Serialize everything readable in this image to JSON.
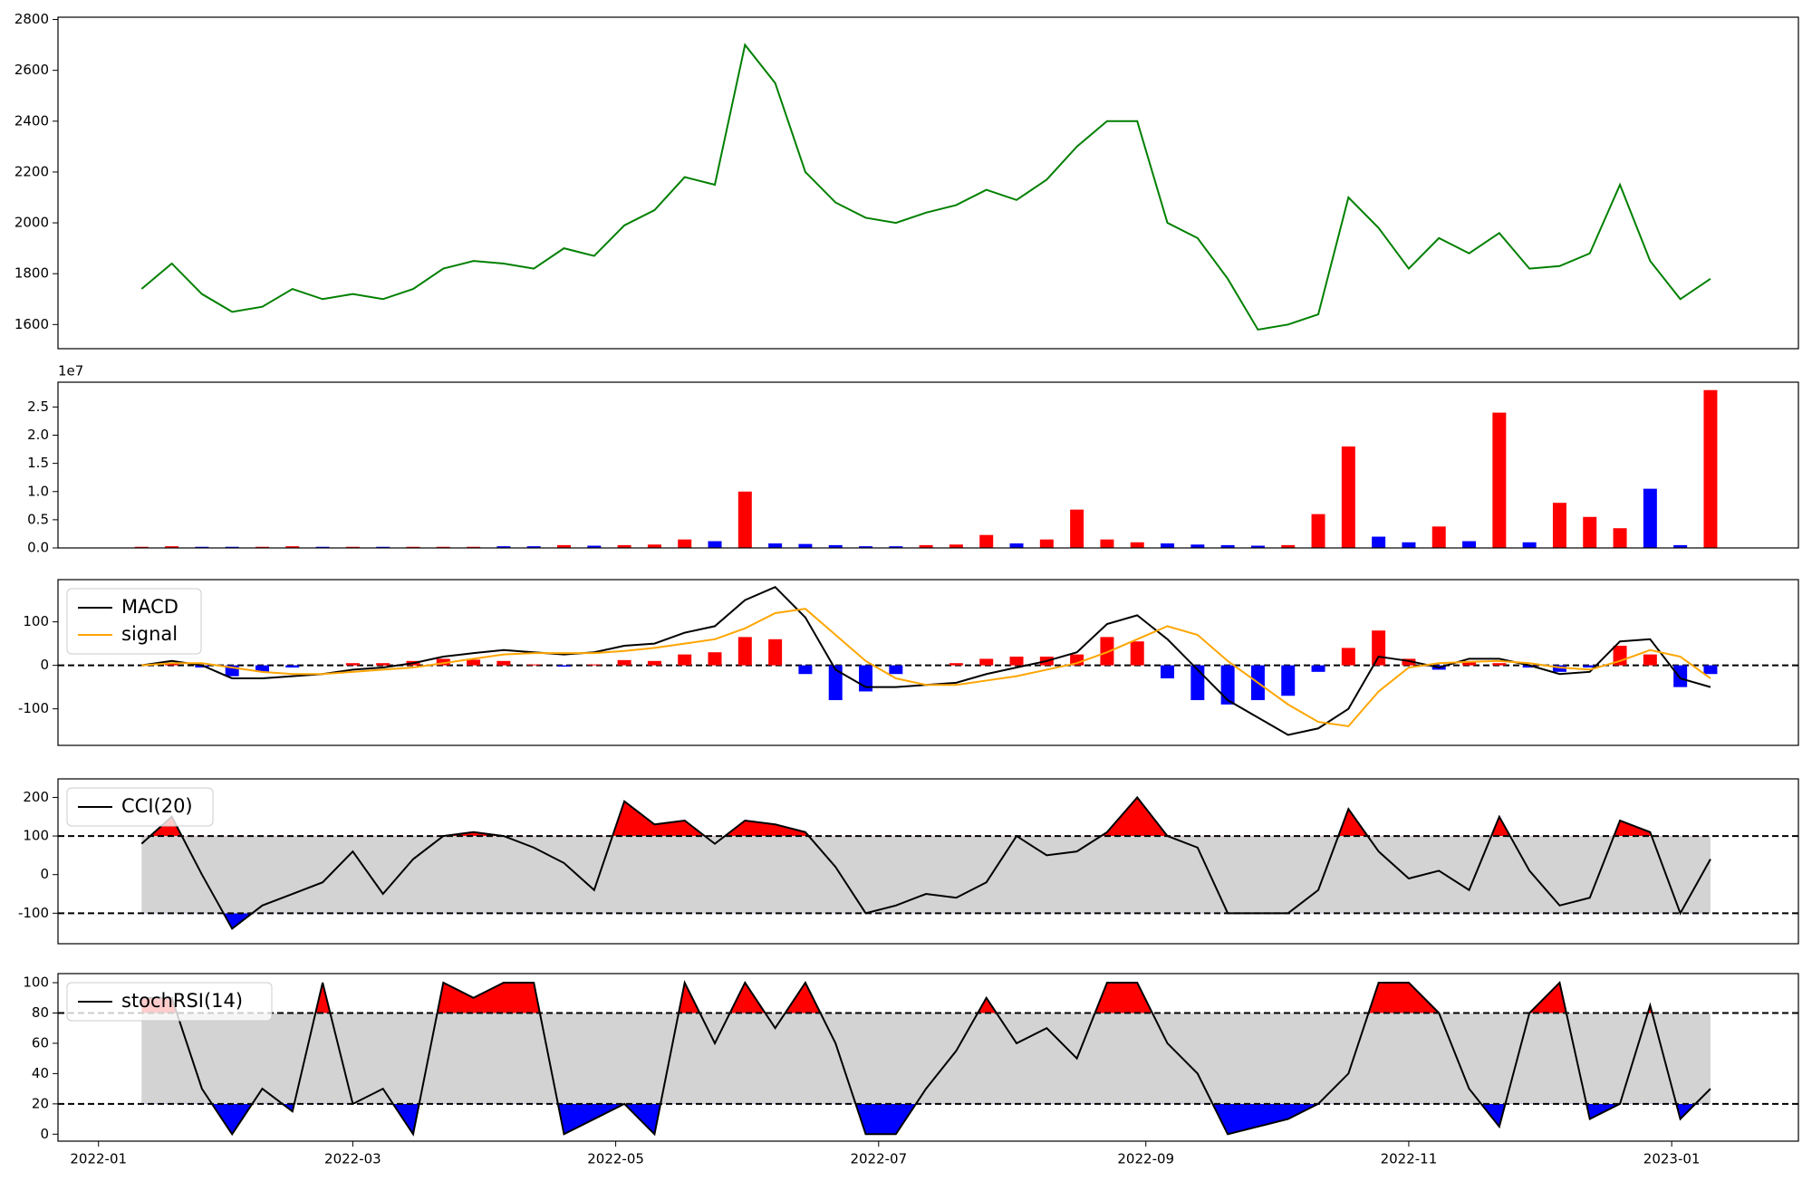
{
  "chart_data": [
    {
      "type": "line",
      "x": [
        10,
        17,
        24,
        31,
        38,
        45,
        52,
        59,
        66,
        73,
        80,
        87,
        94,
        101,
        108,
        115,
        122,
        129,
        136,
        143,
        150,
        157,
        164,
        171,
        178,
        185,
        192,
        199,
        206,
        213,
        220,
        227,
        234,
        241,
        248,
        255,
        262,
        269,
        276,
        283,
        290,
        297,
        304,
        311,
        318,
        325,
        332,
        339,
        346,
        353,
        360,
        367,
        374
      ],
      "series": [
        {
          "color": "#008000",
          "values": [
            1740,
            1840,
            1720,
            1650,
            1670,
            1740,
            1700,
            1720,
            1700,
            1740,
            1820,
            1850,
            1840,
            1820,
            1900,
            1870,
            1990,
            2050,
            2180,
            2150,
            2700,
            2550,
            2200,
            2080,
            2020,
            2000,
            2040,
            2070,
            2130,
            2090,
            2170,
            2300,
            2400,
            2400,
            2000,
            1940,
            1780,
            1580,
            1600,
            1640,
            2100,
            1980,
            1820,
            1940,
            1880,
            1960,
            1820,
            1830,
            1880,
            2150,
            1850,
            1700,
            1780
          ]
        }
      ],
      "xlim": [
        -9.4,
        394.4
      ],
      "ylim": [
        1505,
        2809
      ],
      "yticks": [
        1600,
        1800,
        2000,
        2200,
        2400,
        2600,
        2800
      ]
    },
    {
      "type": "bar",
      "x": [
        10,
        17,
        24,
        31,
        38,
        45,
        52,
        59,
        66,
        73,
        80,
        87,
        94,
        101,
        108,
        115,
        122,
        129,
        136,
        143,
        150,
        157,
        164,
        171,
        178,
        185,
        192,
        199,
        206,
        213,
        220,
        227,
        234,
        241,
        248,
        255,
        262,
        269,
        276,
        283,
        290,
        297,
        304,
        311,
        318,
        325,
        332,
        339,
        346,
        353,
        360,
        367,
        374
      ],
      "values": [
        200000,
        300000,
        200000,
        200000,
        200000,
        300000,
        200000,
        200000,
        200000,
        200000,
        200000,
        200000,
        300000,
        300000,
        500000,
        400000,
        500000,
        600000,
        1500000,
        1200000,
        10000000,
        800000,
        700000,
        500000,
        300000,
        300000,
        500000,
        600000,
        2300000,
        800000,
        1500000,
        6800000,
        1500000,
        1000000,
        800000,
        600000,
        500000,
        400000,
        500000,
        6000000,
        18000000,
        2000000,
        1000000,
        3800000,
        1200000,
        24000000,
        1000000,
        8000000,
        5500000,
        3500000,
        10500000,
        500000,
        28000000
      ],
      "up_color": "#ff0000",
      "down_color": "#0000ff",
      "offset_label": "1e7",
      "xlim": [
        -9.4,
        394.4
      ],
      "ylim": [
        0,
        29400000
      ],
      "yticks": [
        {
          "value": 0,
          "label": "0.0"
        },
        {
          "value": 5000000,
          "label": "0.5"
        },
        {
          "value": 10000000,
          "label": "1.0"
        },
        {
          "value": 15000000,
          "label": "1.5"
        },
        {
          "value": 20000000,
          "label": "2.0"
        },
        {
          "value": 25000000,
          "label": "2.5"
        }
      ]
    },
    {
      "type": "line",
      "x": [
        10,
        17,
        24,
        31,
        38,
        45,
        52,
        59,
        66,
        73,
        80,
        87,
        94,
        101,
        108,
        115,
        122,
        129,
        136,
        143,
        150,
        157,
        164,
        171,
        178,
        185,
        192,
        199,
        206,
        213,
        220,
        227,
        234,
        241,
        248,
        255,
        262,
        269,
        276,
        283,
        290,
        297,
        304,
        311,
        318,
        325,
        332,
        339,
        346,
        353,
        360,
        367,
        374
      ],
      "series": [
        {
          "name": "MACD",
          "color": "#000000",
          "values": [
            0,
            10,
            0,
            -30,
            -30,
            -25,
            -20,
            -10,
            -5,
            5,
            20,
            28,
            35,
            30,
            25,
            30,
            45,
            50,
            75,
            90,
            150,
            180,
            110,
            -10,
            -50,
            -50,
            -45,
            -40,
            -20,
            -5,
            10,
            30,
            95,
            115,
            60,
            -10,
            -80,
            -120,
            -160,
            -145,
            -100,
            20,
            10,
            -5,
            15,
            15,
            0,
            -20,
            -15,
            55,
            60,
            -30,
            -50
          ]
        },
        {
          "name": "signal",
          "color": "#ffa500",
          "values": [
            0,
            5,
            5,
            -5,
            -15,
            -20,
            -20,
            -15,
            -10,
            -5,
            5,
            15,
            25,
            28,
            28,
            28,
            33,
            40,
            50,
            60,
            85,
            120,
            130,
            70,
            10,
            -30,
            -45,
            -45,
            -35,
            -25,
            -10,
            5,
            30,
            60,
            90,
            70,
            10,
            -40,
            -90,
            -130,
            -140,
            -60,
            -5,
            5,
            8,
            10,
            5,
            -5,
            -10,
            10,
            35,
            20,
            -30
          ]
        }
      ],
      "bars": {
        "values": [
          0,
          5,
          -5,
          -25,
          -15,
          -5,
          0,
          5,
          5,
          10,
          15,
          13,
          10,
          2,
          -3,
          2,
          12,
          10,
          25,
          30,
          65,
          60,
          -20,
          -80,
          -60,
          -20,
          0,
          5,
          15,
          20,
          20,
          25,
          65,
          55,
          -30,
          -80,
          -90,
          -80,
          -70,
          -15,
          40,
          80,
          15,
          -10,
          7,
          5,
          -5,
          -15,
          -5,
          45,
          25,
          -50,
          -20
        ],
        "up_color": "#ff0000",
        "down_color": "#0000ff"
      },
      "zero_line": 0,
      "legend": "upper left",
      "xlim": [
        -9.4,
        394.4
      ],
      "ylim": [
        -184,
        197
      ],
      "yticks": [
        -100,
        0,
        100
      ]
    },
    {
      "type": "line",
      "x": [
        10,
        17,
        24,
        31,
        38,
        45,
        52,
        59,
        66,
        73,
        80,
        87,
        94,
        101,
        108,
        115,
        122,
        129,
        136,
        143,
        150,
        157,
        164,
        171,
        178,
        185,
        192,
        199,
        206,
        213,
        220,
        227,
        234,
        241,
        248,
        255,
        262,
        269,
        276,
        283,
        290,
        297,
        304,
        311,
        318,
        325,
        332,
        339,
        346,
        353,
        360,
        367,
        374
      ],
      "series": [
        {
          "name": "CCI(20)",
          "color": "#000000",
          "values": [
            80,
            150,
            0,
            -140,
            -80,
            -50,
            -20,
            60,
            -50,
            40,
            100,
            110,
            100,
            70,
            30,
            -40,
            190,
            130,
            140,
            80,
            140,
            130,
            110,
            20,
            -100,
            -80,
            -50,
            -60,
            -20,
            100,
            50,
            60,
            110,
            200,
            100,
            70,
            -100,
            -100,
            -100,
            -40,
            170,
            60,
            -10,
            10,
            -40,
            150,
            10,
            -80,
            -60,
            140,
            110,
            -100,
            40
          ]
        }
      ],
      "bands": {
        "upper": 100,
        "lower": -100,
        "fill": "#d3d3d3",
        "above_color": "#ff0000",
        "below_color": "#0000ff"
      },
      "legend": "upper left",
      "xlim": [
        -9.4,
        394.4
      ],
      "ylim": [
        -179,
        248
      ],
      "yticks": [
        -100,
        0,
        100,
        200
      ]
    },
    {
      "type": "line",
      "x": [
        10,
        17,
        24,
        31,
        38,
        45,
        52,
        59,
        66,
        73,
        80,
        87,
        94,
        101,
        108,
        115,
        122,
        129,
        136,
        143,
        150,
        157,
        164,
        171,
        178,
        185,
        192,
        199,
        206,
        213,
        220,
        227,
        234,
        241,
        248,
        255,
        262,
        269,
        276,
        283,
        290,
        297,
        304,
        311,
        318,
        325,
        332,
        339,
        346,
        353,
        360,
        367,
        374
      ],
      "series": [
        {
          "name": "stochRSI(14)",
          "color": "#000000",
          "values": [
            90,
            90,
            30,
            0,
            30,
            15,
            100,
            20,
            30,
            0,
            100,
            90,
            100,
            100,
            0,
            10,
            20,
            0,
            100,
            60,
            100,
            70,
            100,
            60,
            0,
            0,
            30,
            55,
            90,
            60,
            70,
            50,
            100,
            100,
            60,
            40,
            0,
            5,
            10,
            20,
            40,
            100,
            100,
            80,
            30,
            5,
            80,
            100,
            10,
            20,
            85,
            10,
            30
          ]
        }
      ],
      "bands": {
        "upper": 80,
        "lower": 20,
        "fill": "#d3d3d3",
        "above_color": "#ff0000",
        "below_color": "#0000ff"
      },
      "legend": "upper left",
      "xlim": [
        -9.4,
        394.4
      ],
      "ylim": [
        -4.6,
        106
      ],
      "yticks": [
        0,
        20,
        40,
        60,
        80,
        100
      ],
      "xticks": [
        {
          "value": 0,
          "label": "2022-01"
        },
        {
          "value": 59,
          "label": "2022-03"
        },
        {
          "value": 120,
          "label": "2022-05"
        },
        {
          "value": 181,
          "label": "2022-07"
        },
        {
          "value": 243,
          "label": "2022-09"
        },
        {
          "value": 304,
          "label": "2022-11"
        },
        {
          "value": 365,
          "label": "2023-01"
        }
      ]
    }
  ]
}
